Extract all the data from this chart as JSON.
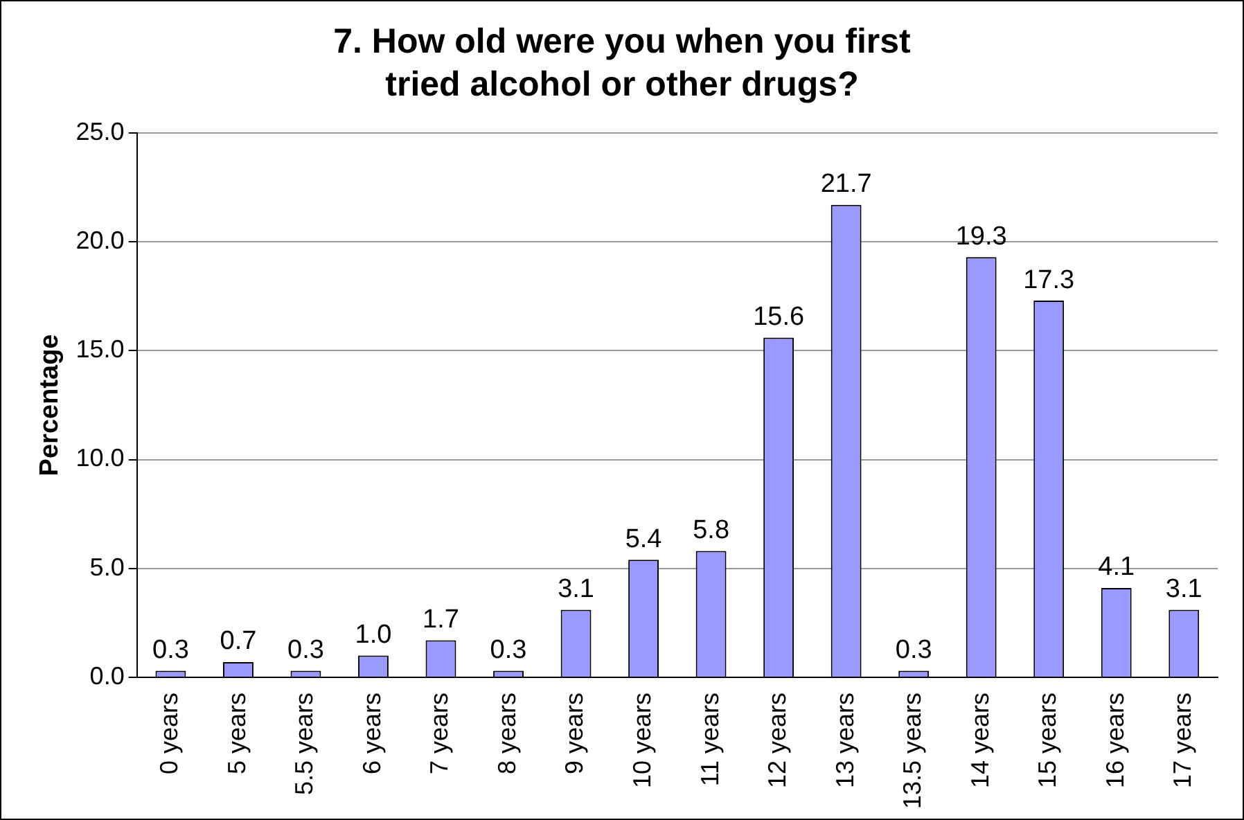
{
  "chart_data": {
    "type": "bar",
    "title": "7. How old were you when you first tried alcohol or other drugs?",
    "ylabel": "Percentage",
    "categories": [
      "0 years",
      "5 years",
      "5.5 years",
      "6 years",
      "7 years",
      "8 years",
      "9 years",
      "10 years",
      "11 years",
      "12 years",
      "13 years",
      "13.5 years",
      "14 years",
      "15 years",
      "16 years",
      "17 years"
    ],
    "values": [
      0.3,
      0.7,
      0.3,
      1.0,
      1.7,
      0.3,
      3.1,
      5.4,
      5.8,
      15.6,
      21.7,
      0.3,
      19.3,
      17.3,
      4.1,
      3.1
    ],
    "value_labels": [
      "0.3",
      "0.7",
      "0.3",
      "1.0",
      "1.7",
      "0.3",
      "3.1",
      "5.4",
      "5.8",
      "15.6",
      "21.7",
      "0.3",
      "19.3",
      "17.3",
      "4.1",
      "3.1"
    ],
    "color": "#9999ff",
    "ylim": [
      0,
      25
    ],
    "yticks": [
      {
        "value": 0,
        "label": "0.0"
      },
      {
        "value": 5,
        "label": "5.0"
      },
      {
        "value": 10,
        "label": "10.0"
      },
      {
        "value": 15,
        "label": "15.0"
      },
      {
        "value": 20,
        "label": "20.0"
      },
      {
        "value": 25,
        "label": "25.0"
      }
    ],
    "grid": "y",
    "legend": false
  }
}
